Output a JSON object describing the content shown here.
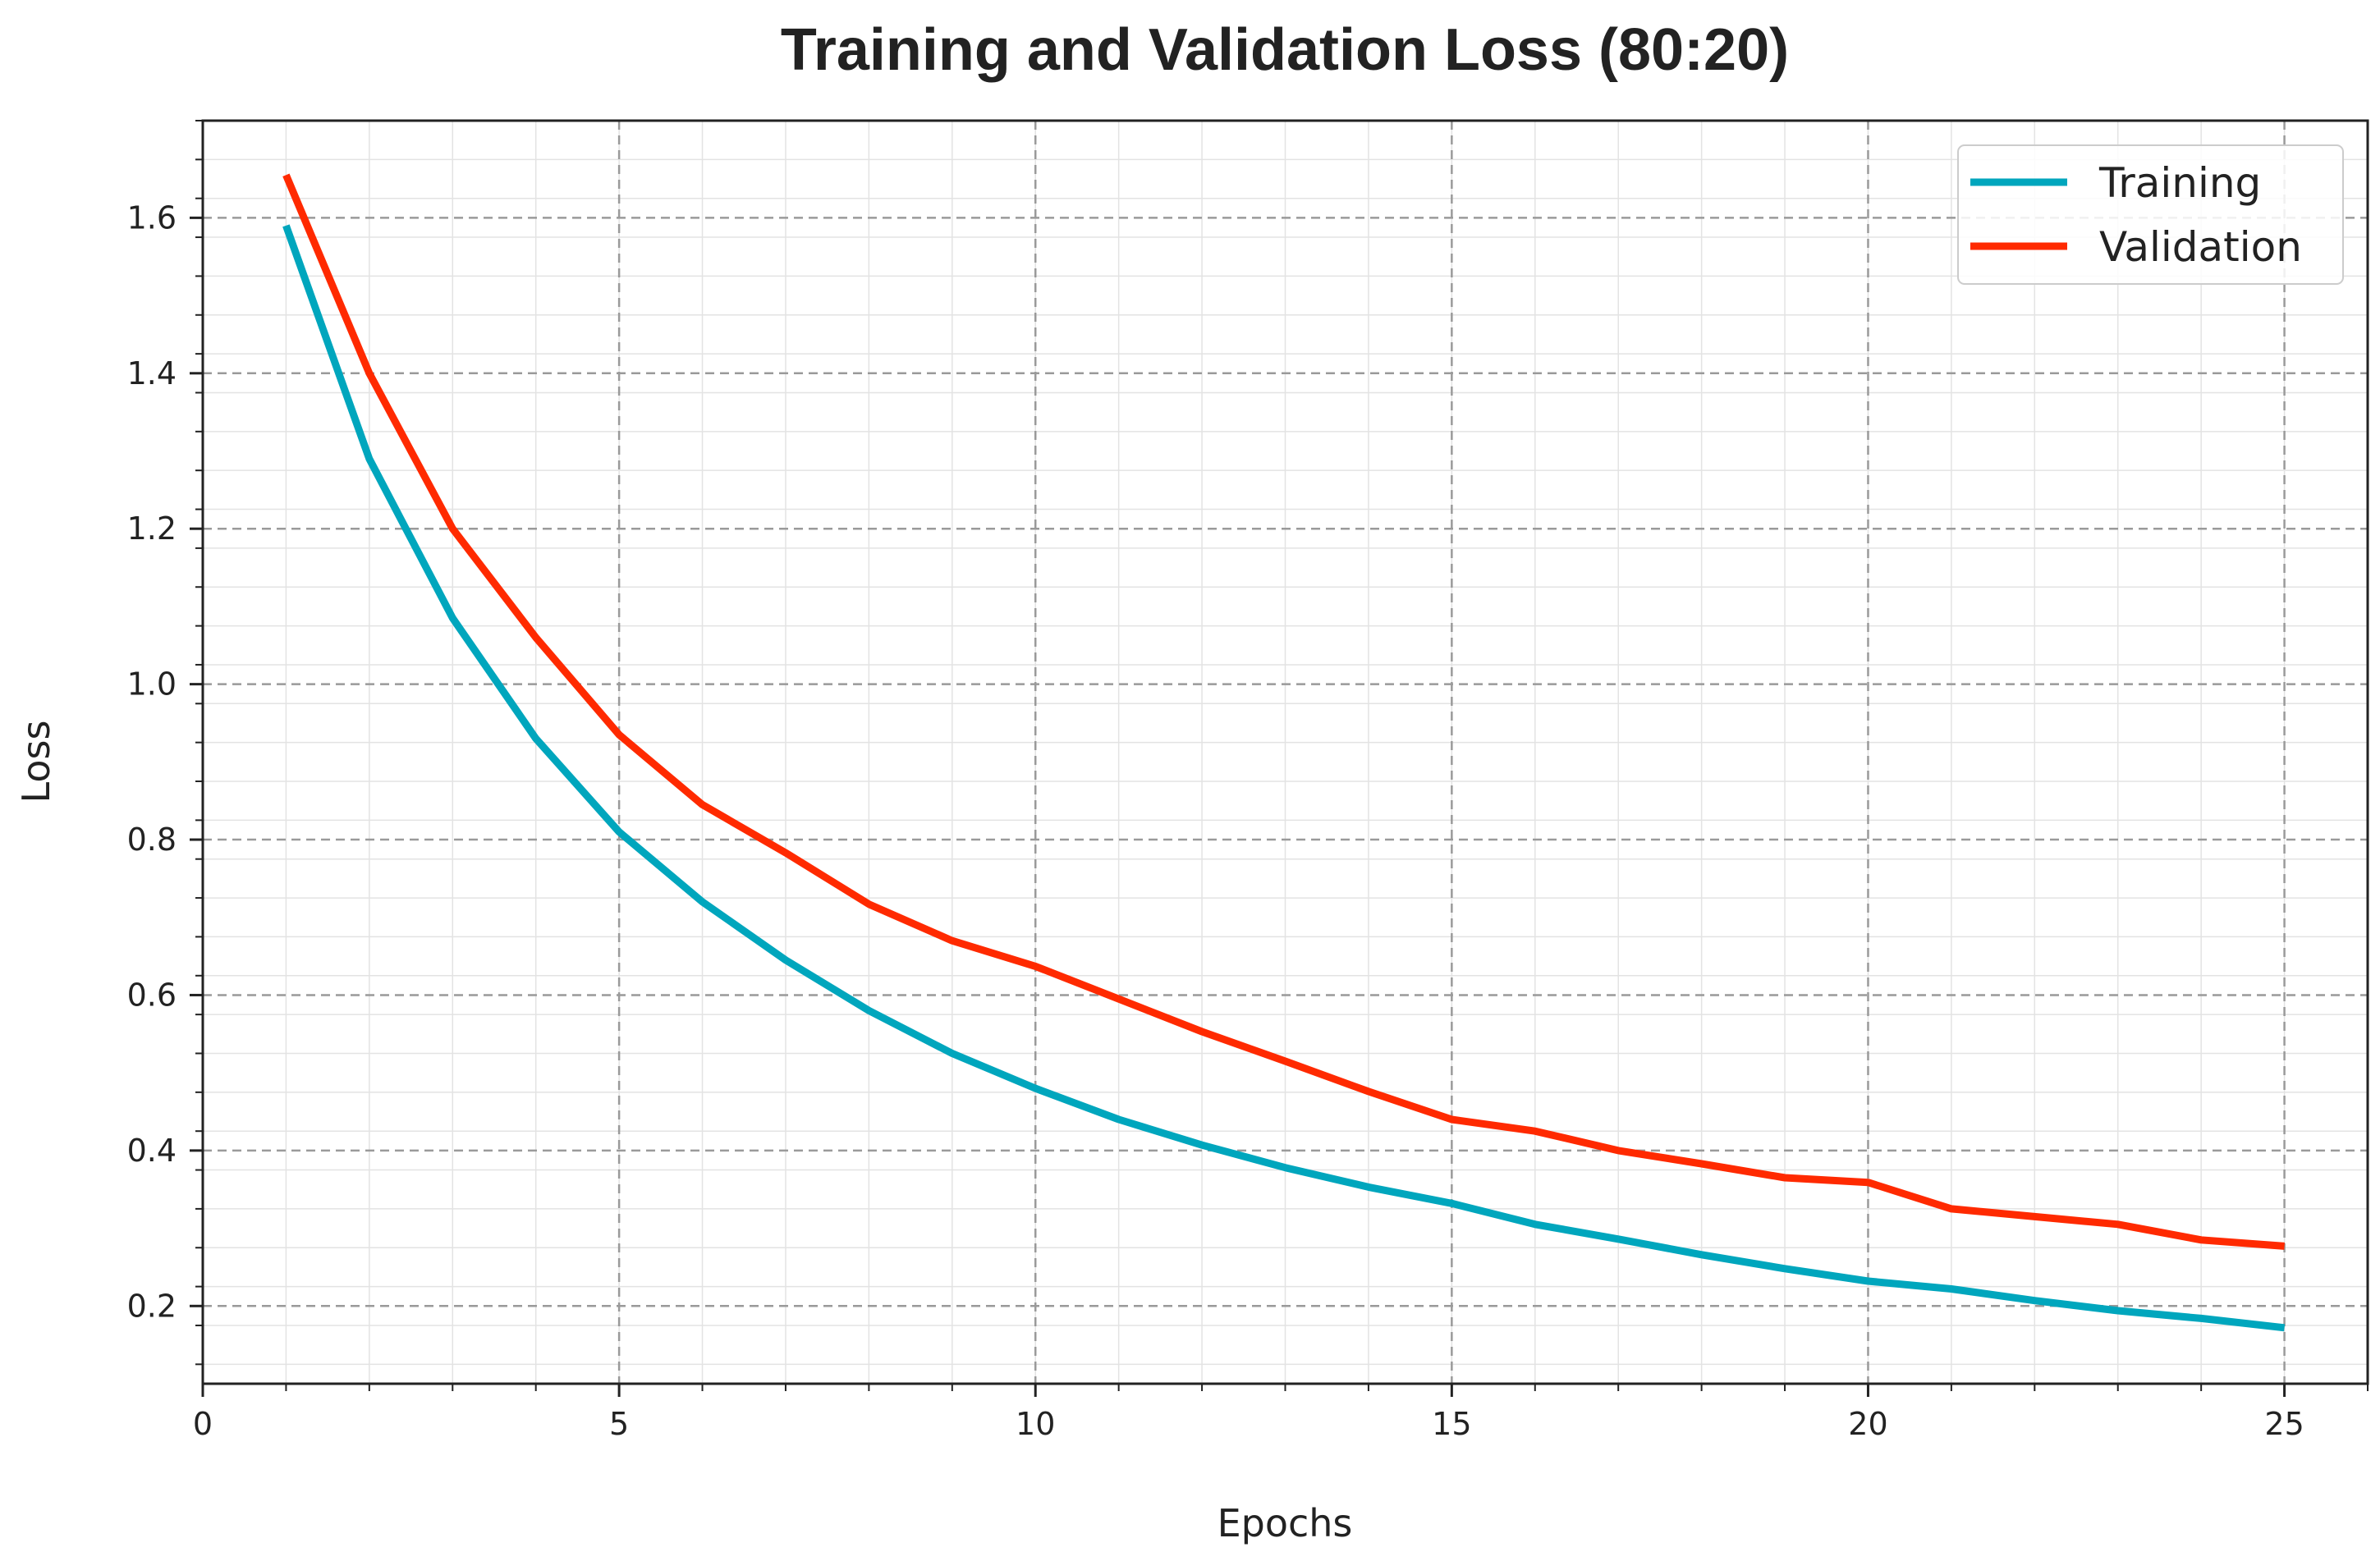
{
  "chart_data": {
    "type": "line",
    "title": "Training and Validation Loss (80:20)",
    "xlabel": "Epochs",
    "ylabel": "Loss",
    "xlim": [
      0,
      26
    ],
    "ylim": [
      0.1,
      1.725
    ],
    "xticks": [
      0,
      5,
      10,
      15,
      20,
      25
    ],
    "yticks": [
      0.2,
      0.4,
      0.6,
      0.8,
      1.0,
      1.2,
      1.4,
      1.6
    ],
    "xtick_labels": [
      "0",
      "5",
      "10",
      "15",
      "20",
      "25"
    ],
    "ytick_labels": [
      "0.2",
      "0.4",
      "0.6",
      "0.8",
      "1.0",
      "1.2",
      "1.4",
      "1.6"
    ],
    "grid": true,
    "minor_grid": true,
    "legend_position": "top-right",
    "x": [
      1,
      2,
      3,
      4,
      5,
      6,
      7,
      8,
      9,
      10,
      11,
      12,
      13,
      14,
      15,
      16,
      17,
      18,
      19,
      20,
      21,
      22,
      23,
      24,
      25
    ],
    "series": [
      {
        "name": "Training",
        "color": "#00a6bd",
        "values": [
          1.59,
          1.29,
          1.085,
          0.93,
          0.81,
          0.72,
          0.645,
          0.58,
          0.525,
          0.48,
          0.44,
          0.407,
          0.378,
          0.353,
          0.332,
          0.305,
          0.286,
          0.266,
          0.248,
          0.232,
          0.222,
          0.207,
          0.194,
          0.184,
          0.172
        ]
      },
      {
        "name": "Validation",
        "color": "#ff2a00",
        "values": [
          1.655,
          1.4,
          1.2,
          1.06,
          0.935,
          0.845,
          0.783,
          0.717,
          0.67,
          0.637,
          0.595,
          0.553,
          0.515,
          0.476,
          0.44,
          0.425,
          0.4,
          0.383,
          0.365,
          0.359,
          0.325,
          0.315,
          0.305,
          0.285,
          0.277
        ]
      }
    ]
  }
}
